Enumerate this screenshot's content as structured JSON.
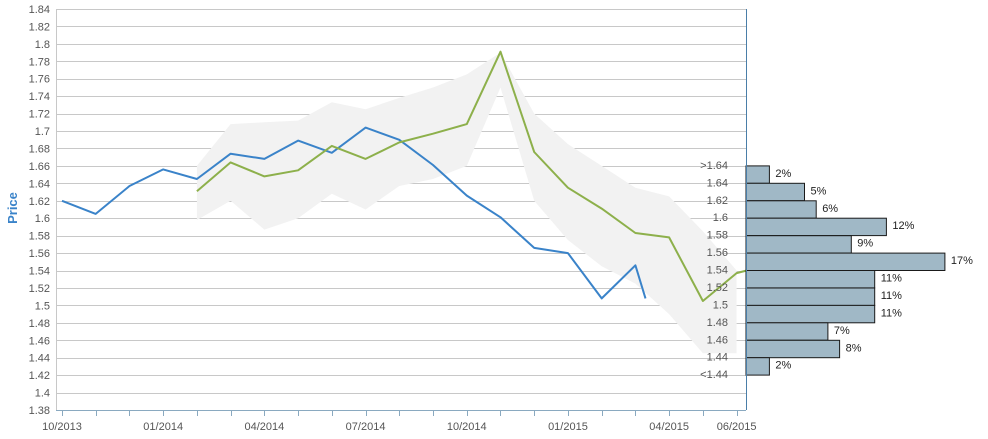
{
  "chart_data": {
    "type": "line",
    "ylabel": "Price",
    "xlabel": "",
    "title": "",
    "ylim": [
      1.38,
      1.84
    ],
    "y_ticks": [
      1.38,
      1.4,
      1.42,
      1.44,
      1.46,
      1.48,
      1.5,
      1.52,
      1.54,
      1.56,
      1.58,
      1.6,
      1.62,
      1.64,
      1.66,
      1.68,
      1.7,
      1.72,
      1.74,
      1.76,
      1.78,
      1.8,
      1.82,
      1.84
    ],
    "x_tick_labels": [
      "10/2013",
      "01/2014",
      "04/2014",
      "07/2014",
      "10/2014",
      "01/2015",
      "04/2015",
      "06/2015"
    ],
    "x_tick_months": [
      "2013-10",
      "2014-01",
      "2014-04",
      "2014-07",
      "2014-10",
      "2015-01",
      "2015-04",
      "2015-06"
    ],
    "grid": true,
    "colors": {
      "historical": "#3a83c9",
      "forecast": "#8db04b",
      "range": "#f2f2f2",
      "bars": "#a0b8c6",
      "bar_border": "#1a1a1a",
      "ylabel": "#3a83c9"
    },
    "series": [
      {
        "values": [
          [
            "2013-10",
            1.62
          ],
          [
            "2013-11",
            1.605
          ],
          [
            "2013-12",
            1.637
          ],
          [
            "2014-01",
            1.656
          ],
          [
            "2014-02",
            1.645
          ],
          [
            "2014-03",
            1.674
          ],
          [
            "2014-04",
            1.668
          ],
          [
            "2014-05",
            1.689
          ],
          [
            "2014-06",
            1.675
          ],
          [
            "2014-07",
            1.704
          ],
          [
            "2014-08",
            1.69
          ],
          [
            "2014-09",
            1.661
          ],
          [
            "2014-10",
            1.626
          ],
          [
            "2014-11",
            1.601
          ],
          [
            "2014-12",
            1.566
          ],
          [
            "2015-01",
            1.56
          ],
          [
            "2015-02",
            1.508
          ],
          [
            "2015-03",
            1.546
          ],
          [
            "2015-03-10",
            1.508
          ]
        ]
      },
      {
        "values": [
          [
            "2014-02",
            1.631
          ],
          [
            "2014-03",
            1.664
          ],
          [
            "2014-04",
            1.648
          ],
          [
            "2014-05",
            1.655
          ],
          [
            "2014-06",
            1.683
          ],
          [
            "2014-07",
            1.668
          ],
          [
            "2014-08",
            1.687
          ],
          [
            "2014-09",
            1.697
          ],
          [
            "2014-10",
            1.708
          ],
          [
            "2014-11",
            1.791
          ],
          [
            "2014-12",
            1.676
          ],
          [
            "2015-01",
            1.635
          ],
          [
            "2015-02",
            1.611
          ],
          [
            "2015-03",
            1.583
          ],
          [
            "2015-04",
            1.578
          ],
          [
            "2015-05",
            1.505
          ],
          [
            "2015-06",
            1.537
          ],
          [
            "2015-06-10",
            1.54
          ]
        ]
      }
    ],
    "range_band": [
      {
        "x": "2014-02",
        "low": 1.598,
        "high": 1.66
      },
      {
        "x": "2014-03",
        "low": 1.62,
        "high": 1.708
      },
      {
        "x": "2014-04",
        "low": 1.587,
        "high": 1.71
      },
      {
        "x": "2014-05",
        "low": 1.6,
        "high": 1.712
      },
      {
        "x": "2014-06",
        "low": 1.628,
        "high": 1.733
      },
      {
        "x": "2014-07",
        "low": 1.61,
        "high": 1.725
      },
      {
        "x": "2014-08",
        "low": 1.637,
        "high": 1.738
      },
      {
        "x": "2014-09",
        "low": 1.645,
        "high": 1.75
      },
      {
        "x": "2014-10",
        "low": 1.66,
        "high": 1.765
      },
      {
        "x": "2014-11",
        "low": 1.75,
        "high": 1.79
      },
      {
        "x": "2014-12",
        "low": 1.62,
        "high": 1.72
      },
      {
        "x": "2015-01",
        "low": 1.575,
        "high": 1.685
      },
      {
        "x": "2015-02",
        "low": 1.545,
        "high": 1.66
      },
      {
        "x": "2015-03",
        "low": 1.525,
        "high": 1.635
      },
      {
        "x": "2015-04",
        "low": 1.49,
        "high": 1.625
      },
      {
        "x": "2015-05",
        "low": 1.445,
        "high": 1.585
      },
      {
        "x": "2015-06",
        "low": 1.445,
        "high": 1.54
      }
    ],
    "distribution": {
      "type": "bar",
      "orientation": "horizontal",
      "categories": [
        ">1.64",
        "1.64",
        "1.62",
        "1.6",
        "1.58",
        "1.56",
        "1.54",
        "1.52",
        "1.5",
        "1.48",
        "1.46",
        "1.44",
        "<1.44"
      ],
      "values": [
        2,
        5,
        6,
        12,
        9,
        17,
        11,
        11,
        11,
        7,
        8,
        2,
        0
      ],
      "value_labels": [
        "2%",
        "5%",
        "6%",
        "12%",
        "9%",
        "17%",
        "11%",
        "11%",
        "11%",
        "7%",
        "8%",
        "2%",
        ""
      ]
    }
  }
}
